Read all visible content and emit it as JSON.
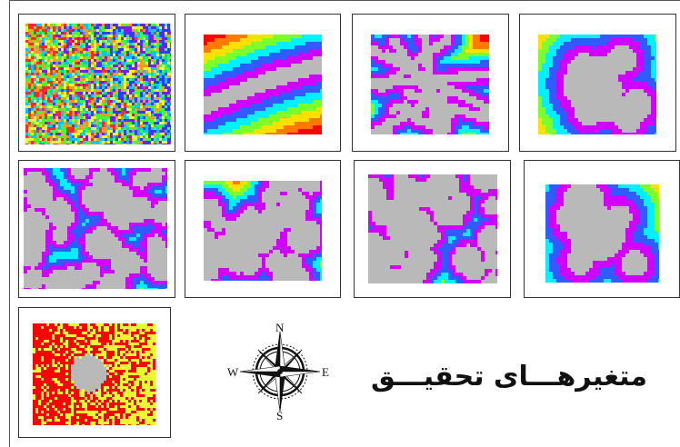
{
  "maps": [
    {
      "id": "map-1",
      "style": "noise",
      "colors": [
        "#2a3cff",
        "#7a1cff",
        "#00c8ff",
        "#3cff3c",
        "#e8ff30",
        "#ff9a1e",
        "#ff2a2a"
      ]
    },
    {
      "id": "map-2",
      "style": "corridor",
      "colors": [
        "#ff0000",
        "#ff7a00",
        "#ffe000",
        "#7dff2a",
        "#00f0ff",
        "#2f5bff",
        "#d100ff",
        "#b9b9b9"
      ]
    },
    {
      "id": "map-3",
      "style": "roads",
      "colors": [
        "#ff0000",
        "#ff7a00",
        "#ffe000",
        "#7dff2a",
        "#00f0ff",
        "#2f5bff",
        "#d100ff",
        "#b9b9b9"
      ]
    },
    {
      "id": "map-4",
      "style": "core",
      "colors": [
        "#ff0000",
        "#ff7a00",
        "#ffe000",
        "#7dff2a",
        "#00f0ff",
        "#2f5bff",
        "#d100ff",
        "#b9b9b9"
      ]
    },
    {
      "id": "map-5",
      "style": "patches",
      "colors": [
        "#ff0000",
        "#ff7a00",
        "#ffe000",
        "#7dff2a",
        "#00f0ff",
        "#2f5bff",
        "#d100ff",
        "#b9b9b9"
      ]
    },
    {
      "id": "map-6",
      "style": "patches",
      "colors": [
        "#ff0000",
        "#ff7a00",
        "#ffe000",
        "#7dff2a",
        "#00f0ff",
        "#2f5bff",
        "#d100ff",
        "#b9b9b9"
      ]
    },
    {
      "id": "map-7",
      "style": "patches",
      "colors": [
        "#ff0000",
        "#ff7a00",
        "#ffe000",
        "#7dff2a",
        "#00f0ff",
        "#2f5bff",
        "#d100ff",
        "#b9b9b9"
      ]
    },
    {
      "id": "map-8",
      "style": "core",
      "colors": [
        "#ff0000",
        "#ff7a00",
        "#ffe000",
        "#7dff2a",
        "#00f0ff",
        "#2f5bff",
        "#d100ff",
        "#b9b9b9"
      ]
    },
    {
      "id": "map-9",
      "style": "binary",
      "colors": [
        "#ff0000",
        "#e8ff30",
        "#b9b9b9"
      ]
    }
  ],
  "compass": {
    "north": "N",
    "south": "S",
    "east": "E",
    "west": "W",
    "icon": "compass-rose-icon"
  },
  "title": "متغیرهـــای تحقیـــق"
}
